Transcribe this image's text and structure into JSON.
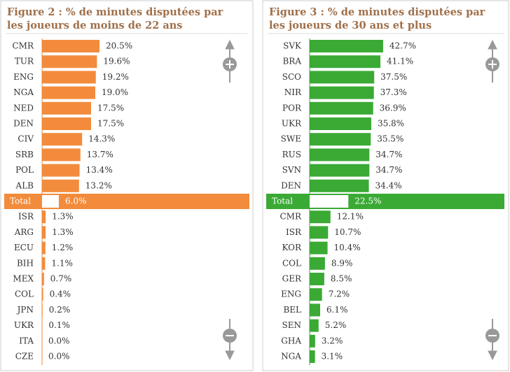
{
  "chart_data": [
    {
      "type": "bar",
      "orientation": "horizontal",
      "title": "Figure 2 : % de minutes disputées par les joueurs de moins de 22 ans",
      "categories": [
        "CMR",
        "TUR",
        "ENG",
        "NGA",
        "NED",
        "DEN",
        "CIV",
        "SRB",
        "POL",
        "ALB",
        "Total",
        "ISR",
        "ARG",
        "ECU",
        "BIH",
        "MEX",
        "COL",
        "JPN",
        "UKR",
        "ITA",
        "CZE"
      ],
      "values": [
        20.5,
        19.6,
        19.2,
        19.0,
        17.5,
        17.5,
        14.3,
        13.7,
        13.4,
        13.2,
        6.0,
        1.3,
        1.3,
        1.2,
        1.1,
        0.7,
        0.4,
        0.2,
        0.1,
        0.0,
        0.0
      ],
      "value_labels": [
        "20.5%",
        "19.6%",
        "19.2%",
        "19.0%",
        "17.5%",
        "17.5%",
        "14.3%",
        "13.7%",
        "13.4%",
        "13.2%",
        "6.0%",
        "1.3%",
        "1.3%",
        "1.2%",
        "1.1%",
        "0.7%",
        "0.4%",
        "0.2%",
        "0.1%",
        "0.0%",
        "0.0%"
      ],
      "highlight_index": 10,
      "color": "#f28c3c",
      "xlim": [
        0,
        60
      ]
    },
    {
      "type": "bar",
      "orientation": "horizontal",
      "title": "Figure 3 : % de minutes disputées par les joueurs de 30 ans et plus",
      "categories": [
        "SVK",
        "BRA",
        "SCO",
        "NIR",
        "POR",
        "UKR",
        "SWE",
        "RUS",
        "SVN",
        "DEN",
        "Total",
        "CMR",
        "ISR",
        "KOR",
        "COL",
        "GER",
        "ENG",
        "BEL",
        "SEN",
        "GHA",
        "NGA"
      ],
      "values": [
        42.7,
        41.1,
        37.5,
        37.3,
        36.9,
        35.8,
        35.5,
        34.7,
        34.7,
        34.4,
        22.5,
        12.1,
        10.7,
        10.4,
        8.9,
        8.5,
        7.2,
        6.1,
        5.2,
        3.2,
        3.1
      ],
      "value_labels": [
        "42.7%",
        "41.1%",
        "37.5%",
        "37.3%",
        "36.9%",
        "35.8%",
        "35.5%",
        "34.7%",
        "34.7%",
        "34.4%",
        "22.5%",
        "12.1%",
        "10.7%",
        "10.4%",
        "8.9%",
        "8.5%",
        "7.2%",
        "6.1%",
        "5.2%",
        "3.2%",
        "3.1%"
      ],
      "highlight_index": 10,
      "color": "#3aaa35",
      "xlim": [
        0,
        105
      ]
    }
  ]
}
